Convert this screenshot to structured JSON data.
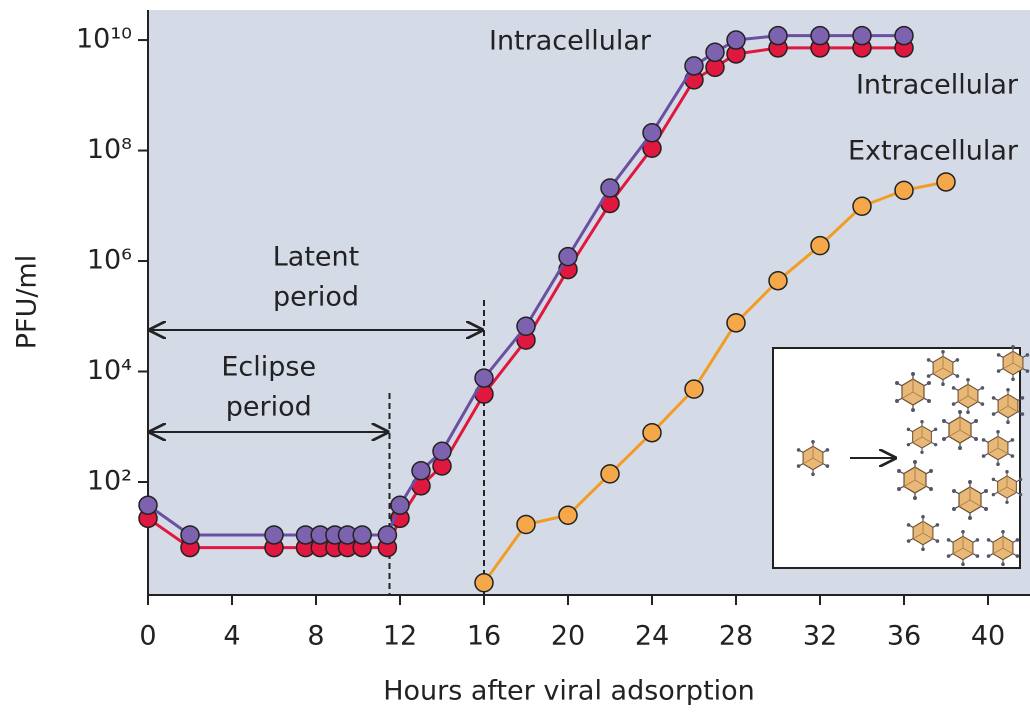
{
  "chart_data": {
    "type": "line",
    "y_scale": "log",
    "xlabel": "Hours after viral adsorption",
    "ylabel": "PFU/ml",
    "xlim": [
      0,
      42
    ],
    "xticks": [
      0,
      4,
      8,
      12,
      16,
      20,
      24,
      28,
      32,
      36,
      40
    ],
    "ylim": [
      0.9,
      35000000000
    ],
    "yticks": [
      {
        "value": 100,
        "label": "10²"
      },
      {
        "value": 10000,
        "label": "10⁴"
      },
      {
        "value": 1000000,
        "label": "10⁶"
      },
      {
        "value": 100000000,
        "label": "10⁸"
      },
      {
        "value": 10000000000,
        "label": "10¹⁰"
      }
    ],
    "series": [
      {
        "name": "Intracellular",
        "color": "#6b4fa0",
        "marker_color": "#7d62b0",
        "x": [
          0,
          2,
          6,
          7.5,
          8.2,
          8.9,
          9.5,
          10.2,
          11.4,
          12,
          13,
          14,
          16,
          18,
          20,
          22,
          24,
          26,
          27,
          28,
          30,
          32,
          34,
          36
        ],
        "values": [
          38,
          11,
          11,
          11,
          11,
          11,
          11,
          11,
          11,
          38,
          160,
          360,
          7600,
          66000,
          1200000,
          21000000,
          210000000,
          3400000000,
          6000000000,
          10000000000,
          12000000000,
          12000000000,
          12000000000,
          12000000000
        ]
      },
      {
        "name": "Intracellular",
        "color": "#e0173f",
        "marker_color": "#e0173f",
        "x": [
          0,
          2,
          6,
          7.5,
          8.2,
          8.9,
          9.5,
          10.2,
          11.4,
          12,
          13,
          14,
          16,
          18,
          20,
          22,
          24,
          26,
          27,
          28,
          30,
          32,
          34,
          36
        ],
        "values": [
          22,
          6.5,
          6.5,
          6.5,
          6.5,
          6.5,
          6.5,
          6.5,
          6.5,
          22,
          85,
          195,
          3900,
          37000,
          700000,
          11000000,
          110000000,
          1900000000,
          3200000000,
          5600000000,
          7200000000,
          7200000000,
          7200000000,
          7200000000
        ]
      },
      {
        "name": "Extracellular",
        "color": "#f39c25",
        "marker_color": "#f4a84a",
        "x": [
          16,
          18,
          20,
          22,
          24,
          26,
          28,
          30,
          32,
          34,
          36,
          38
        ],
        "values": [
          1.5,
          17,
          25,
          140,
          780,
          4800,
          76000,
          440000,
          1900000,
          9800000,
          19000000,
          27000000
        ]
      }
    ],
    "annotations": [
      {
        "lines": [
          "Latent",
          "period"
        ],
        "x": [
          0,
          16
        ]
      },
      {
        "lines": [
          "Eclipse",
          "period"
        ],
        "x": [
          0,
          11.5
        ]
      }
    ]
  }
}
